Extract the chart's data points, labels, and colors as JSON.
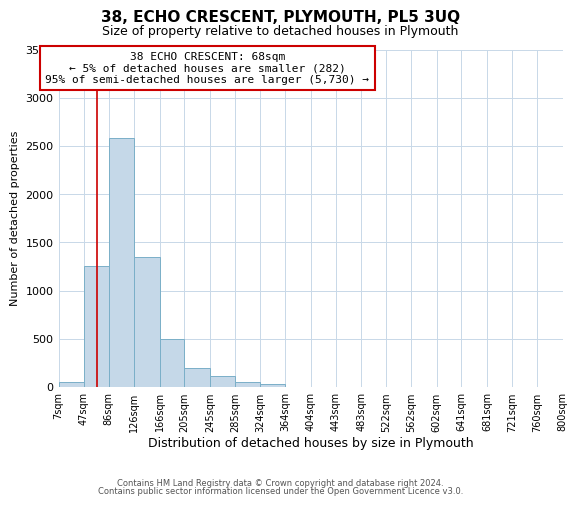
{
  "title": "38, ECHO CRESCENT, PLYMOUTH, PL5 3UQ",
  "subtitle": "Size of property relative to detached houses in Plymouth",
  "xlabel": "Distribution of detached houses by size in Plymouth",
  "ylabel": "Number of detached properties",
  "footer_lines": [
    "Contains HM Land Registry data © Crown copyright and database right 2024.",
    "Contains public sector information licensed under the Open Government Licence v3.0."
  ],
  "bin_labels": [
    "7sqm",
    "47sqm",
    "86sqm",
    "126sqm",
    "166sqm",
    "205sqm",
    "245sqm",
    "285sqm",
    "324sqm",
    "364sqm",
    "404sqm",
    "443sqm",
    "483sqm",
    "522sqm",
    "562sqm",
    "602sqm",
    "641sqm",
    "681sqm",
    "721sqm",
    "760sqm",
    "800sqm"
  ],
  "bar_heights": [
    50,
    1250,
    2580,
    1350,
    500,
    200,
    110,
    50,
    30,
    5,
    5,
    0,
    0,
    0,
    0,
    0,
    0,
    0,
    0,
    0
  ],
  "bar_color": "#c5d8e8",
  "bar_edgecolor": "#7aafc8",
  "ylim": [
    0,
    3500
  ],
  "yticks": [
    0,
    500,
    1000,
    1500,
    2000,
    2500,
    3000,
    3500
  ],
  "property_line_x": 68,
  "bin_edges_values": [
    7,
    47,
    86,
    126,
    166,
    205,
    245,
    285,
    324,
    364,
    404,
    443,
    483,
    522,
    562,
    602,
    641,
    681,
    721,
    760,
    800
  ],
  "annotation_title": "38 ECHO CRESCENT: 68sqm",
  "annotation_line1": "← 5% of detached houses are smaller (282)",
  "annotation_line2": "95% of semi-detached houses are larger (5,730) →",
  "annotation_box_color": "#ffffff",
  "annotation_box_edgecolor": "#cc0000",
  "vline_color": "#cc0000",
  "background_color": "#ffffff",
  "grid_color": "#c8d8e8"
}
